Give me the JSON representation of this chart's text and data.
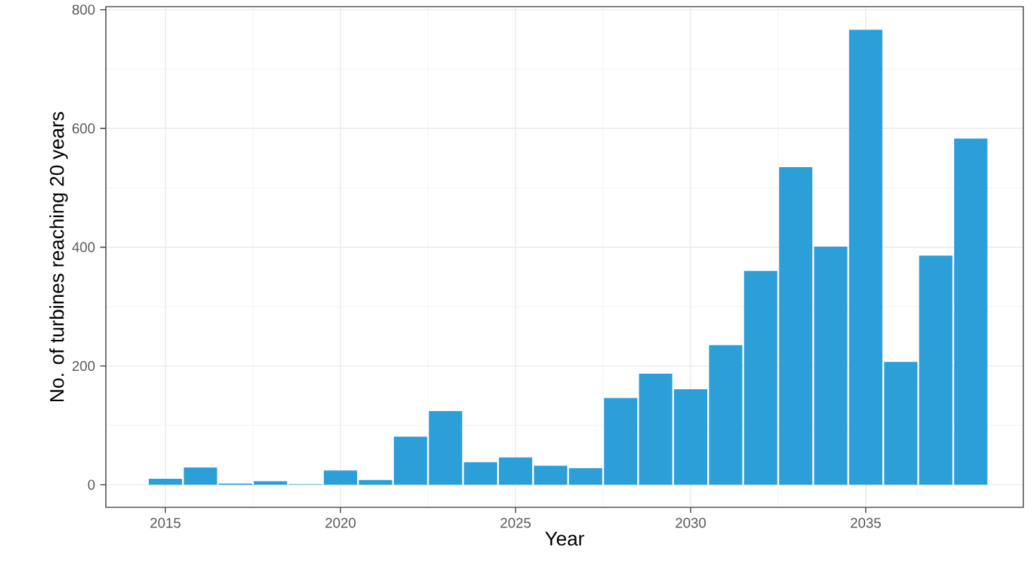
{
  "chart_data": {
    "type": "bar",
    "xlabel": "Year",
    "ylabel": "No. of turbines reaching 20 years",
    "x": [
      2015,
      2016,
      2017,
      2018,
      2019,
      2020,
      2021,
      2022,
      2023,
      2024,
      2025,
      2026,
      2027,
      2028,
      2029,
      2030,
      2031,
      2032,
      2033,
      2034,
      2035,
      2036,
      2037,
      2038
    ],
    "values": [
      10,
      29,
      2,
      6,
      1,
      24,
      8,
      81,
      124,
      38,
      46,
      32,
      28,
      146,
      187,
      161,
      235,
      360,
      535,
      401,
      766,
      207,
      386,
      583
    ],
    "color": "#2c9fd9",
    "xlim": [
      2013.3,
      2039.5
    ],
    "ylim": [
      -38,
      805
    ],
    "xticks": [
      2015,
      2020,
      2025,
      2030,
      2035
    ],
    "yticks": [
      0,
      200,
      400,
      600,
      800
    ],
    "grid": true
  }
}
